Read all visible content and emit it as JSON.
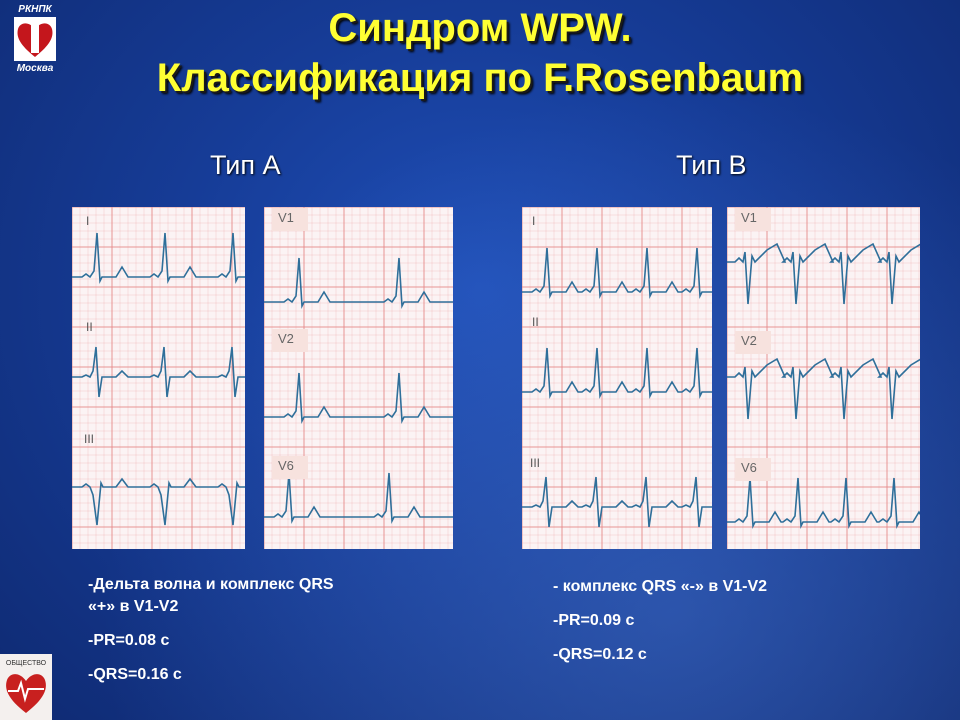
{
  "slide": {
    "title_line1": "Синдром WPW.",
    "title_line2": "Классификация по F.Rosenbaum"
  },
  "logo_top": {
    "org": "РКНПК",
    "city": "Москва",
    "icon": "heart-logo-icon"
  },
  "logo_bottom": {
    "text": "ОБЩЕСТВО",
    "icon": "society-emblem-icon"
  },
  "type_a": {
    "heading": "Тип А",
    "limb_leads": [
      "I",
      "II",
      "III"
    ],
    "chest_leads": [
      "V1",
      "V2",
      "V6"
    ],
    "desc": [
      "-Дельта волна и комплекс QRS",
      "«+» в V1-V2",
      "-PR=0.08 с",
      "-QRS=0.16 с"
    ]
  },
  "type_b": {
    "heading": "Тип В",
    "limb_leads": [
      "I",
      "II",
      "III"
    ],
    "chest_leads": [
      "V1",
      "V2",
      "V6"
    ],
    "desc": [
      "- комплекс QRS «-» в V1-V2",
      "-PR=0.09 с",
      "-QRS=0.12 с"
    ]
  },
  "colors": {
    "title": "#ffff33",
    "trace": "#2f6f9a",
    "grid": "#e58a8a",
    "paper": "#fbf3f4"
  }
}
